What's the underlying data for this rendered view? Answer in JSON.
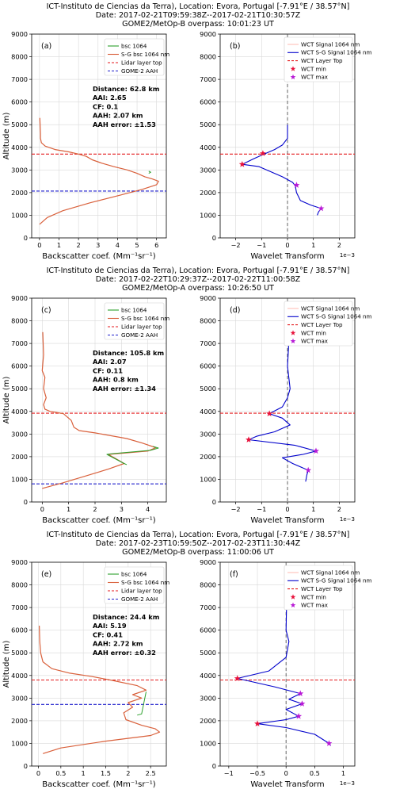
{
  "figure": {
    "panels": [
      {
        "titles": [
          "ICT-Instituto de Ciencias da Terra), Location: Evora, Portugal [-7.91°E / 38.57°N]",
          "Date: 2017-02-21T09:59:38Z--2017-02-21T10:30:57Z",
          "GOME2/MetOp-B overpass: 10:01:23 UT"
        ],
        "left_label": "(a)",
        "right_label": "(b)",
        "annotation": [
          "Distance: 62.8 km",
          "AAI: 2.65",
          "CF: 0.1",
          "AAH: 2.07 km",
          "AAH error: ±1.53"
        ]
      },
      {
        "titles": [
          "ICT-Instituto de Ciencias da Terra), Location: Evora, Portugal [-7.91°E / 38.57°N]",
          "Date: 2017-02-22T10:29:37Z--2017-02-22T11:00:58Z",
          "GOME2/MetOp-A overpass: 10:26:50 UT"
        ],
        "left_label": "(c)",
        "right_label": "(d)",
        "annotation": [
          "Distance: 105.8 km",
          "AAI: 2.07",
          "CF: 0.11",
          "AAH: 0.8 km",
          "AAH error: ±1.34"
        ]
      },
      {
        "titles": [
          "ICT-Instituto de Ciencias da Terra), Location: Evora, Portugal [-7.91°E / 38.57°N]",
          "Date: 2017-02-23T10:59:50Z--2017-02-23T11:30:44Z",
          "GOME2/MetOp-B overpass: 11:00:06 UT"
        ],
        "left_label": "(e)",
        "right_label": "(f)",
        "annotation": [
          "Distance: 24.4 km",
          "AAI: 5.19",
          "CF: 0.41",
          "AAH: 2.72 km",
          "AAH error: ±0.32"
        ]
      }
    ],
    "left_xlabel": "Backscatter coef. (Mm⁻¹sr⁻¹)",
    "right_xlabel": "Wavelet Transform",
    "ylabel": "Altitude (m)",
    "right_exponent": "1e−3",
    "left_legend": [
      "bsc 1064",
      "S-G bsc 1064 nm",
      "Lidar layer top",
      "GOME-2 AAH"
    ],
    "right_legend": [
      "WCT Signal 1064 nm",
      "WCT S-G Signal 1064 nm",
      "WCT Layer Top",
      "WCT min",
      "WCT max"
    ]
  },
  "colors": {
    "raw": "#2ca02c",
    "smooth": "#d9603b",
    "lidar_top": "#e41a1c",
    "gome_aah": "#1f1fcc",
    "wct_signal": "#ffc0b8",
    "wct_sg": "#0000cc",
    "wct_min": "#e8113a",
    "wct_max": "#b81bd6",
    "grid": "#d9d9d9"
  },
  "chart_data": [
    {
      "type": "line",
      "panel": "(a)",
      "xlim": [
        -0.4,
        6.5
      ],
      "ylim": [
        0,
        9000
      ],
      "xticks": [
        0,
        1,
        2,
        3,
        4,
        5,
        6
      ],
      "yticks": [
        0,
        1000,
        2000,
        3000,
        4000,
        5000,
        6000,
        7000,
        8000,
        9000
      ],
      "series": [
        {
          "name": "S-G bsc 1064 nm",
          "x": [
            0.02,
            0.05,
            0.05,
            0.1,
            0.3,
            0.8,
            1.5,
            2.0,
            2.4,
            2.7,
            3.2,
            3.8,
            4.5,
            5.0,
            5.4,
            5.8,
            6.1,
            6.0,
            5.3,
            4.2,
            2.6,
            1.2,
            0.4,
            0.0
          ],
          "y": [
            5300,
            4600,
            4400,
            4200,
            4050,
            3900,
            3800,
            3700,
            3600,
            3450,
            3300,
            3150,
            3000,
            2850,
            2700,
            2600,
            2500,
            2350,
            2150,
            1900,
            1550,
            1200,
            900,
            600
          ]
        },
        {
          "name": "bsc 1064",
          "x": [
            5.6,
            5.7,
            5.6
          ],
          "y": [
            2950,
            2900,
            2850
          ]
        }
      ],
      "hlines": [
        {
          "name": "Lidar layer top",
          "y": 3700
        },
        {
          "name": "GOME-2 AAH",
          "y": 2070
        }
      ]
    },
    {
      "type": "line",
      "panel": "(b)",
      "xlim": [
        -2.6,
        2.6
      ],
      "ylim": [
        0,
        9000
      ],
      "xticks": [
        -2,
        -1,
        0,
        1,
        2
      ],
      "yticks": [
        0,
        1000,
        2000,
        3000,
        4000,
        5000,
        6000,
        7000,
        8000,
        9000
      ],
      "series": [
        {
          "name": "WCT S-G Signal 1064 nm",
          "x": [
            0,
            0,
            -0.2,
            -0.5,
            -0.9,
            -1.3,
            -1.75,
            -1.1,
            -0.2,
            0.2,
            0.3,
            0.35,
            0.5,
            0.9,
            1.3,
            1.2,
            1.15
          ],
          "y": [
            5000,
            4400,
            4100,
            3900,
            3700,
            3500,
            3250,
            3150,
            2700,
            2450,
            2300,
            2000,
            1650,
            1450,
            1300,
            1150,
            1000
          ]
        }
      ],
      "markers": [
        {
          "name": "WCT min",
          "points": [
            [
              -1.75,
              3250
            ],
            [
              -0.95,
              3730
            ]
          ]
        },
        {
          "name": "WCT max",
          "points": [
            [
              0.35,
              2330
            ],
            [
              1.3,
              1300
            ]
          ]
        }
      ],
      "vline": 0,
      "hlines": [
        {
          "name": "WCT Layer Top",
          "y": 3700
        }
      ]
    },
    {
      "type": "line",
      "panel": "(c)",
      "xlim": [
        -0.4,
        4.7
      ],
      "ylim": [
        0,
        9000
      ],
      "xticks": [
        0,
        1,
        2,
        3,
        4
      ],
      "yticks": [
        0,
        1000,
        2000,
        3000,
        4000,
        5000,
        6000,
        7000,
        8000,
        9000
      ],
      "series": [
        {
          "name": "S-G bsc 1064 nm",
          "x": [
            0.02,
            0.05,
            0.0,
            0.1,
            0.05,
            0.15,
            0.05,
            0.1,
            0.3,
            0.8,
            1.1,
            1.2,
            1.4,
            2.0,
            3.2,
            3.8,
            4.3,
            4.0,
            3.0,
            2.5,
            2.8,
            3.1,
            2.5,
            1.8,
            0.8,
            0.0
          ],
          "y": [
            7500,
            6500,
            5800,
            5500,
            5000,
            4600,
            4300,
            4100,
            4000,
            3900,
            3600,
            3300,
            3150,
            3050,
            2800,
            2600,
            2400,
            2250,
            2150,
            2100,
            1900,
            1700,
            1450,
            1200,
            850,
            600
          ]
        },
        {
          "name": "bsc 1064",
          "x": [
            4.2,
            4.4,
            4.1,
            2.6,
            2.45,
            3.1,
            3.2
          ],
          "y": [
            2450,
            2380,
            2280,
            2130,
            2100,
            1700,
            1650
          ]
        }
      ],
      "hlines": [
        {
          "name": "Lidar layer top",
          "y": 3920
        },
        {
          "name": "GOME-2 AAH",
          "y": 800
        }
      ]
    },
    {
      "type": "line",
      "panel": "(d)",
      "xlim": [
        -2.6,
        2.6
      ],
      "ylim": [
        0,
        9000
      ],
      "xticks": [
        -2,
        -1,
        0,
        1,
        2
      ],
      "yticks": [
        0,
        1000,
        2000,
        3000,
        4000,
        5000,
        6000,
        7000,
        8000,
        9000
      ],
      "series": [
        {
          "name": "WCT S-G Signal 1064 nm",
          "x": [
            0,
            0.05,
            0,
            0.1,
            0,
            -0.2,
            -0.7,
            -0.2,
            0.1,
            -0.5,
            -1.2,
            -1.5,
            0.3,
            1.1,
            0.6,
            -0.2,
            0.2,
            0.8,
            0.75,
            0.7
          ],
          "y": [
            8000,
            7000,
            6000,
            5000,
            4600,
            4200,
            3900,
            3700,
            3400,
            3100,
            2900,
            2750,
            2500,
            2250,
            2100,
            1950,
            1700,
            1400,
            1200,
            900
          ]
        }
      ],
      "markers": [
        {
          "name": "WCT min",
          "points": [
            [
              -1.5,
              2750
            ],
            [
              -0.7,
              3900
            ]
          ]
        },
        {
          "name": "WCT max",
          "points": [
            [
              1.1,
              2250
            ],
            [
              0.8,
              1400
            ]
          ]
        }
      ],
      "vline": 0,
      "hlines": [
        {
          "name": "WCT Layer Top",
          "y": 3920
        }
      ]
    },
    {
      "type": "line",
      "panel": "(e)",
      "xlim": [
        -0.15,
        2.85
      ],
      "ylim": [
        0,
        9000
      ],
      "xticks": [
        0.0,
        0.5,
        1.0,
        1.5,
        2.0,
        2.5
      ],
      "yticks": [
        0,
        1000,
        2000,
        3000,
        4000,
        5000,
        6000,
        7000,
        8000,
        9000
      ],
      "series": [
        {
          "name": "S-G bsc 1064 nm",
          "x": [
            0.02,
            0.03,
            0.05,
            0.1,
            0.3,
            0.7,
            1.2,
            1.6,
            2.2,
            2.4,
            2.1,
            2.3,
            2.0,
            2.1,
            1.9,
            1.95,
            2.3,
            2.6,
            2.7,
            2.5,
            1.5,
            0.5,
            0.1
          ],
          "y": [
            6200,
            5500,
            5000,
            4600,
            4300,
            4100,
            3950,
            3800,
            3550,
            3350,
            3150,
            3000,
            2800,
            2600,
            2350,
            2050,
            1800,
            1650,
            1500,
            1350,
            1100,
            800,
            550
          ]
        },
        {
          "name": "bsc 1064",
          "x": [
            2.4,
            2.3,
            2.2
          ],
          "y": [
            3280,
            2300,
            2250
          ]
        }
      ],
      "hlines": [
        {
          "name": "Lidar layer top",
          "y": 3800
        },
        {
          "name": "GOME-2 AAH",
          "y": 2720
        }
      ]
    },
    {
      "type": "line",
      "panel": "(f)",
      "xlim": [
        -1.15,
        1.2
      ],
      "ylim": [
        0,
        9000
      ],
      "xticks": [
        -1.0,
        -0.5,
        0.0,
        0.5,
        1.0
      ],
      "yticks": [
        0,
        1000,
        2000,
        3000,
        4000,
        5000,
        6000,
        7000,
        8000,
        9000
      ],
      "series": [
        {
          "name": "WCT S-G Signal 1064 nm",
          "x": [
            0.02,
            0.0,
            0.05,
            0.0,
            -0.3,
            -0.85,
            -0.2,
            0.25,
            0.05,
            0.28,
            0.0,
            0.22,
            0.0,
            -0.5,
            0.0,
            0.5,
            0.75,
            0.78
          ],
          "y": [
            8500,
            6000,
            5500,
            4800,
            4200,
            3870,
            3500,
            3200,
            2950,
            2750,
            2500,
            2200,
            2050,
            1870,
            1700,
            1400,
            1000,
            900
          ]
        }
      ],
      "markers": [
        {
          "name": "WCT min",
          "points": [
            [
              -0.85,
              3870
            ],
            [
              -0.5,
              1870
            ]
          ]
        },
        {
          "name": "WCT max",
          "points": [
            [
              0.25,
              3200
            ],
            [
              0.28,
              2750
            ],
            [
              0.22,
              2200
            ],
            [
              0.75,
              1000
            ]
          ]
        }
      ],
      "vline": 0,
      "hlines": [
        {
          "name": "WCT Layer Top",
          "y": 3800
        }
      ]
    }
  ]
}
